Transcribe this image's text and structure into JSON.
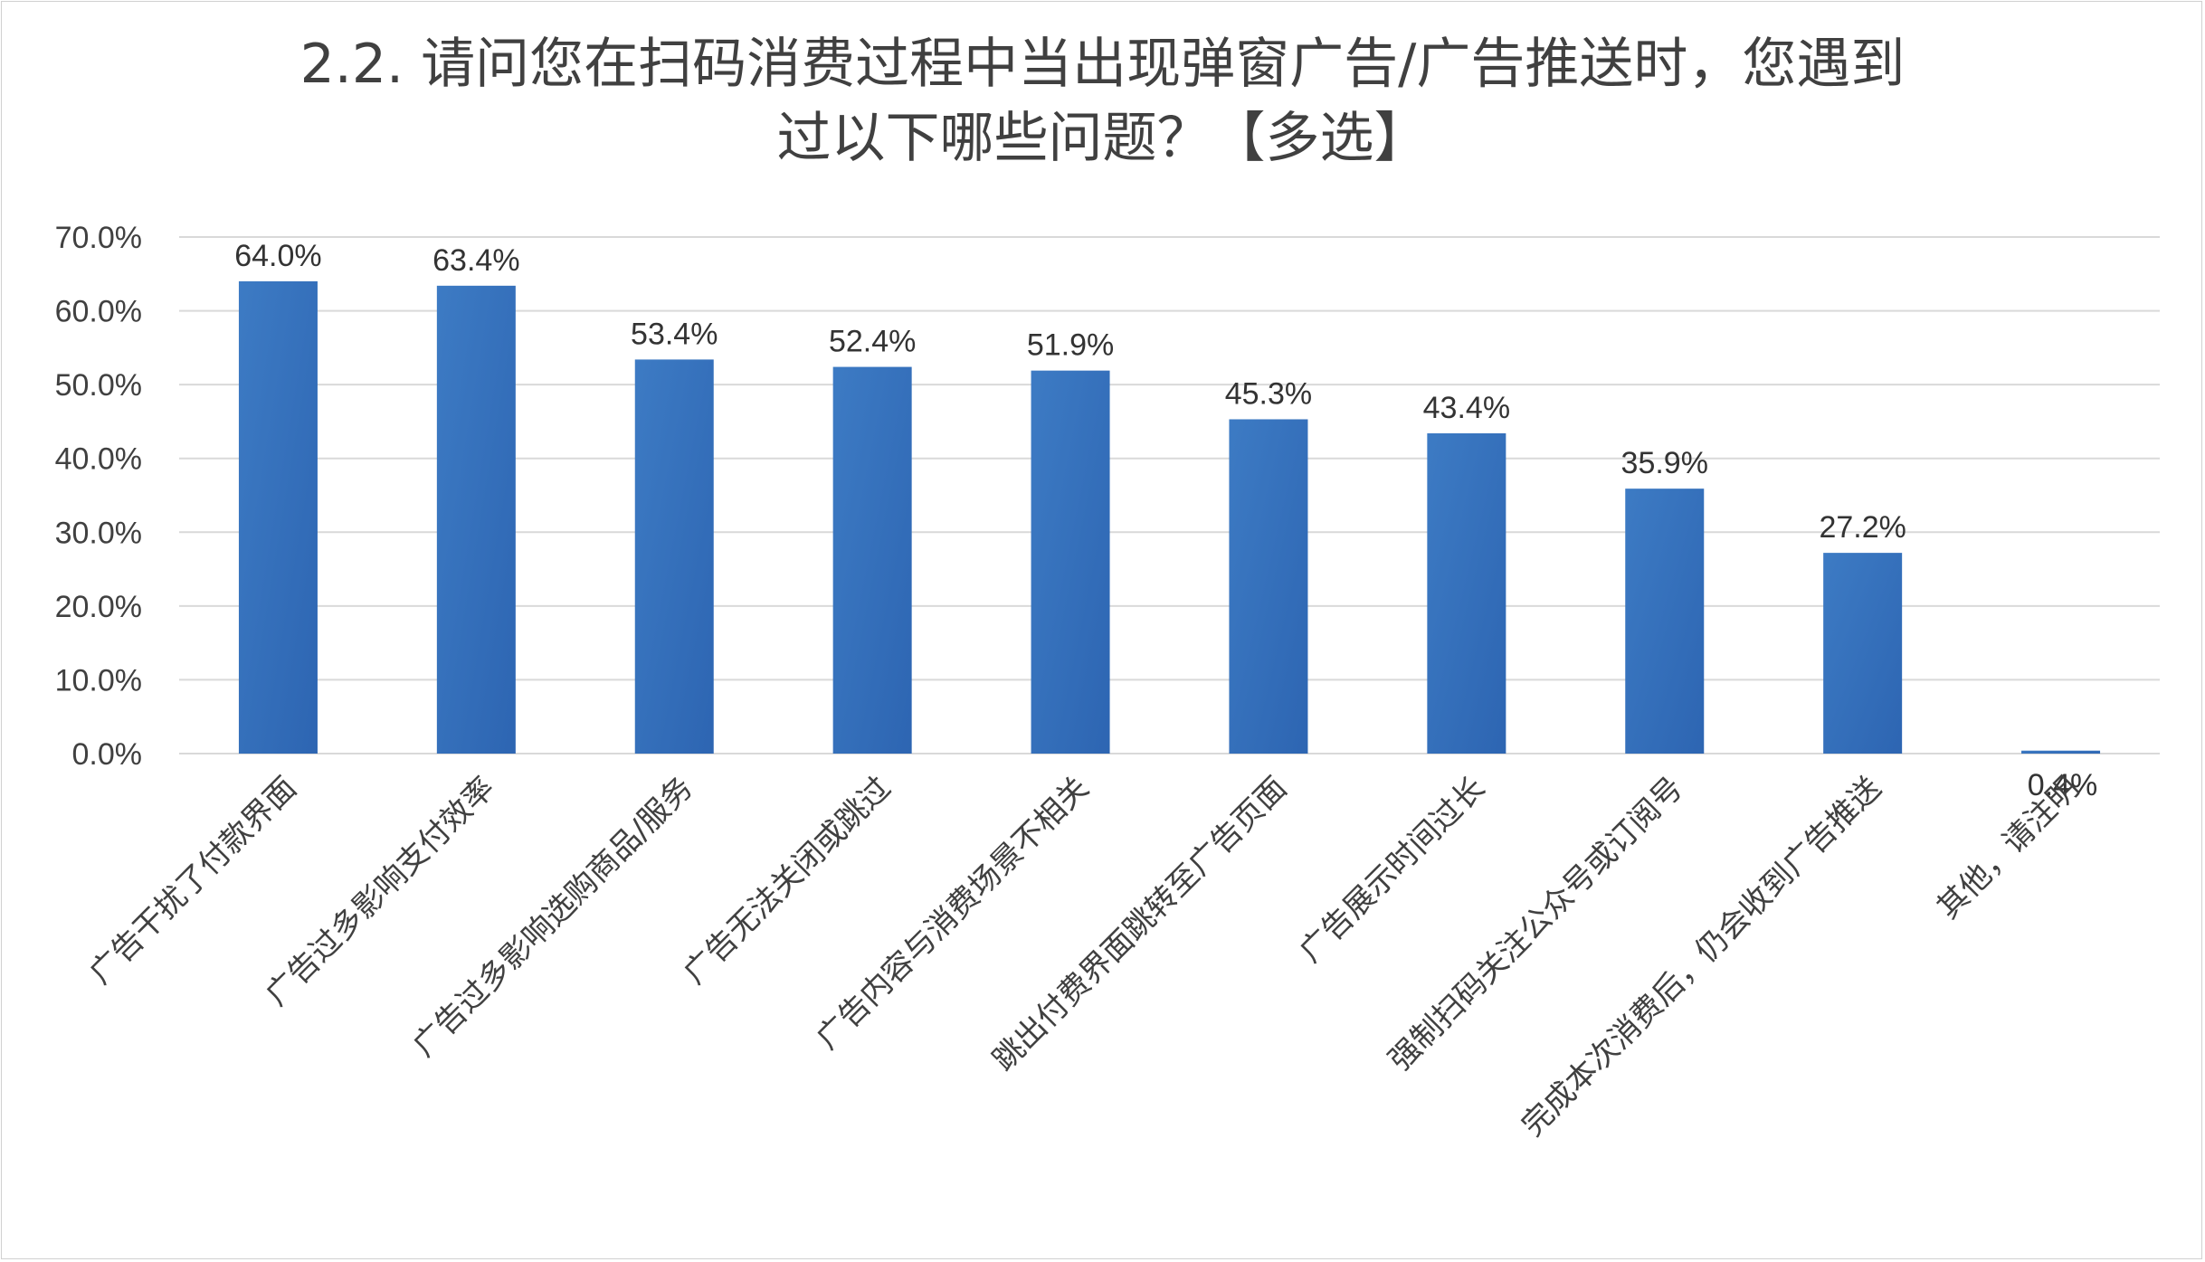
{
  "chart_data": {
    "type": "bar",
    "title_lines": [
      "2.2. 请问您在扫码消费过程中当出现弹窗广告/广告推送时，您遇到",
      "过以下哪些问题？【多选】"
    ],
    "categories": [
      "广告干扰了付款界面",
      "广告过多影响支付效率",
      "广告过多影响选购商品/服务",
      "广告无法关闭或跳过",
      "广告内容与消费场景不相关",
      "跳出付费界面跳转至广告页面",
      "广告展示时间过长",
      "强制扫码关注公众号或订阅号",
      "完成本次消费后，仍会收到广告推送",
      "其他，请注明"
    ],
    "values": [
      64.0,
      63.4,
      53.4,
      52.4,
      51.9,
      45.3,
      43.4,
      35.9,
      27.2,
      0.4
    ],
    "data_labels": [
      "64.0%",
      "63.4%",
      "53.4%",
      "52.4%",
      "51.9%",
      "45.3%",
      "43.4%",
      "35.9%",
      "27.2%",
      "0.4%"
    ],
    "y_ticks": [
      "0.0%",
      "10.0%",
      "20.0%",
      "30.0%",
      "40.0%",
      "50.0%",
      "60.0%",
      "70.0%"
    ],
    "ylim": [
      0,
      70
    ],
    "grid": true,
    "legend": "none",
    "bar_color": "#3570bd",
    "grid_color": "#d9d9d9"
  }
}
